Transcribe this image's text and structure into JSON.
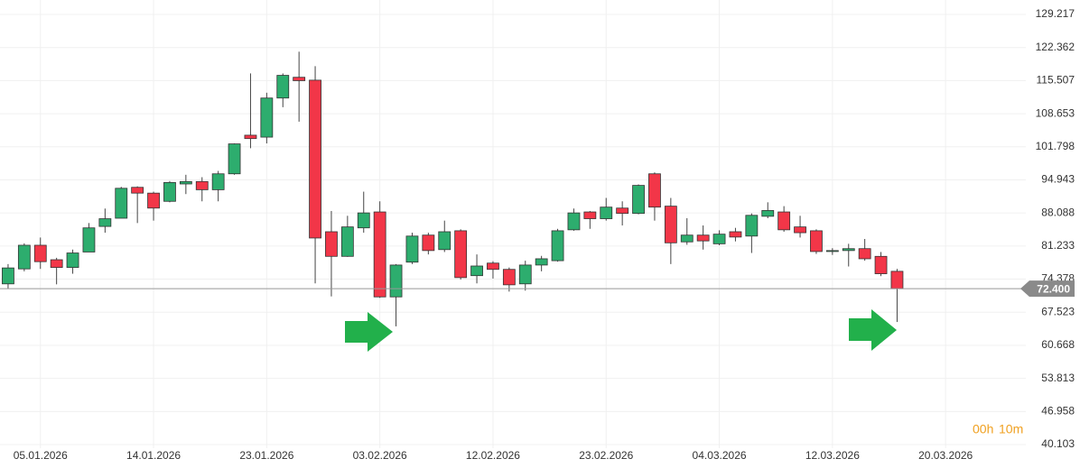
{
  "chart_data": {
    "type": "candlestick",
    "categories": [
      null,
      null,
      "05.01.2026",
      null,
      null,
      null,
      null,
      null,
      null,
      "14.01.2026",
      null,
      null,
      null,
      null,
      null,
      null,
      "23.01.2026",
      null,
      null,
      null,
      null,
      null,
      null,
      "03.02.2026",
      null,
      null,
      null,
      null,
      null,
      null,
      "12.02.2026",
      null,
      null,
      null,
      null,
      null,
      null,
      "23.02.2026",
      null,
      null,
      null,
      null,
      null,
      null,
      "04.03.2026",
      null,
      null,
      null,
      null,
      null,
      null,
      "12.03.2026",
      null,
      null,
      null,
      null,
      null,
      null,
      "20.03.2026"
    ],
    "open": [
      73.4,
      76.5,
      81.4,
      78.4,
      76.8,
      80.0,
      85.3,
      87.0,
      93.4,
      92.2,
      90.5,
      94.1,
      94.6,
      92.9,
      96.2,
      104.2,
      103.8,
      111.9,
      116.2,
      115.6,
      84.2,
      79.1,
      85.0,
      88.3,
      70.7,
      77.9,
      83.5,
      80.5,
      84.4,
      75.1,
      77.7,
      76.4,
      73.4,
      77.3,
      78.2,
      84.6,
      88.3,
      86.9,
      89.1,
      88.0,
      96.2,
      89.5,
      82.1,
      83.5,
      81.7,
      84.2,
      83.3,
      87.4,
      88.3,
      85.2,
      84.4,
      80.1,
      80.3,
      80.7,
      79.1,
      76.0,
      null,
      null,
      null
    ],
    "high": [
      77.5,
      81.8,
      83.0,
      78.8,
      80.5,
      86.0,
      89.0,
      93.5,
      93.6,
      92.5,
      94.7,
      96.0,
      95.5,
      96.8,
      102.5,
      117.0,
      113.0,
      117.0,
      121.5,
      118.5,
      88.5,
      87.5,
      92.5,
      90.5,
      77.5,
      84.0,
      84.0,
      86.5,
      84.7,
      79.5,
      78.1,
      76.8,
      78.2,
      79.2,
      84.8,
      89.0,
      88.5,
      91.2,
      90.5,
      94.0,
      96.5,
      91.2,
      87.0,
      85.5,
      84.5,
      85.0,
      88.0,
      90.3,
      89.5,
      87.5,
      84.7,
      80.8,
      81.7,
      82.7,
      80.0,
      76.5,
      null,
      null,
      null
    ],
    "low": [
      72.4,
      76.0,
      76.5,
      73.3,
      75.5,
      80.0,
      84.0,
      87.0,
      86.0,
      86.5,
      90.3,
      92.0,
      90.5,
      90.5,
      96.0,
      101.5,
      102.5,
      110.0,
      107.0,
      73.5,
      70.8,
      79.0,
      84.0,
      70.5,
      64.6,
      77.5,
      79.5,
      80.0,
      74.3,
      73.5,
      74.5,
      71.8,
      72.0,
      76.0,
      78.0,
      84.4,
      84.8,
      86.5,
      85.5,
      87.8,
      86.5,
      77.5,
      81.5,
      80.5,
      81.4,
      82.2,
      79.8,
      87.0,
      84.2,
      83.0,
      79.6,
      79.4,
      77.0,
      78.2,
      75.0,
      65.5,
      null,
      null,
      null
    ],
    "close": [
      76.7,
      81.4,
      78.0,
      76.8,
      79.8,
      85.0,
      86.9,
      93.2,
      92.2,
      89.1,
      94.4,
      94.6,
      92.9,
      96.2,
      102.4,
      103.5,
      111.9,
      116.6,
      115.5,
      82.9,
      79.1,
      85.2,
      88.1,
      70.7,
      77.3,
      83.3,
      80.3,
      84.2,
      74.7,
      77.1,
      76.4,
      73.2,
      77.3,
      78.6,
      84.4,
      88.1,
      86.9,
      89.3,
      88.0,
      93.8,
      89.3,
      81.9,
      83.5,
      82.3,
      83.7,
      83.1,
      87.6,
      88.6,
      84.6,
      84.0,
      80.1,
      80.3,
      80.7,
      78.6,
      75.5,
      72.4,
      null,
      null,
      null
    ],
    "up_color": "#2dad6e",
    "down_color": "#f23648",
    "ylim": [
      38.8,
      132.21
    ],
    "yticks": [
      129.217,
      122.362,
      115.507,
      108.653,
      101.798,
      94.943,
      88.088,
      81.233,
      74.378,
      67.523,
      60.668,
      53.813,
      46.958,
      40.103
    ],
    "grid": true,
    "current_price": {
      "value": 72.4,
      "label": "72.400"
    },
    "timer": {
      "hours": "00h",
      "minutes": "10m"
    }
  }
}
